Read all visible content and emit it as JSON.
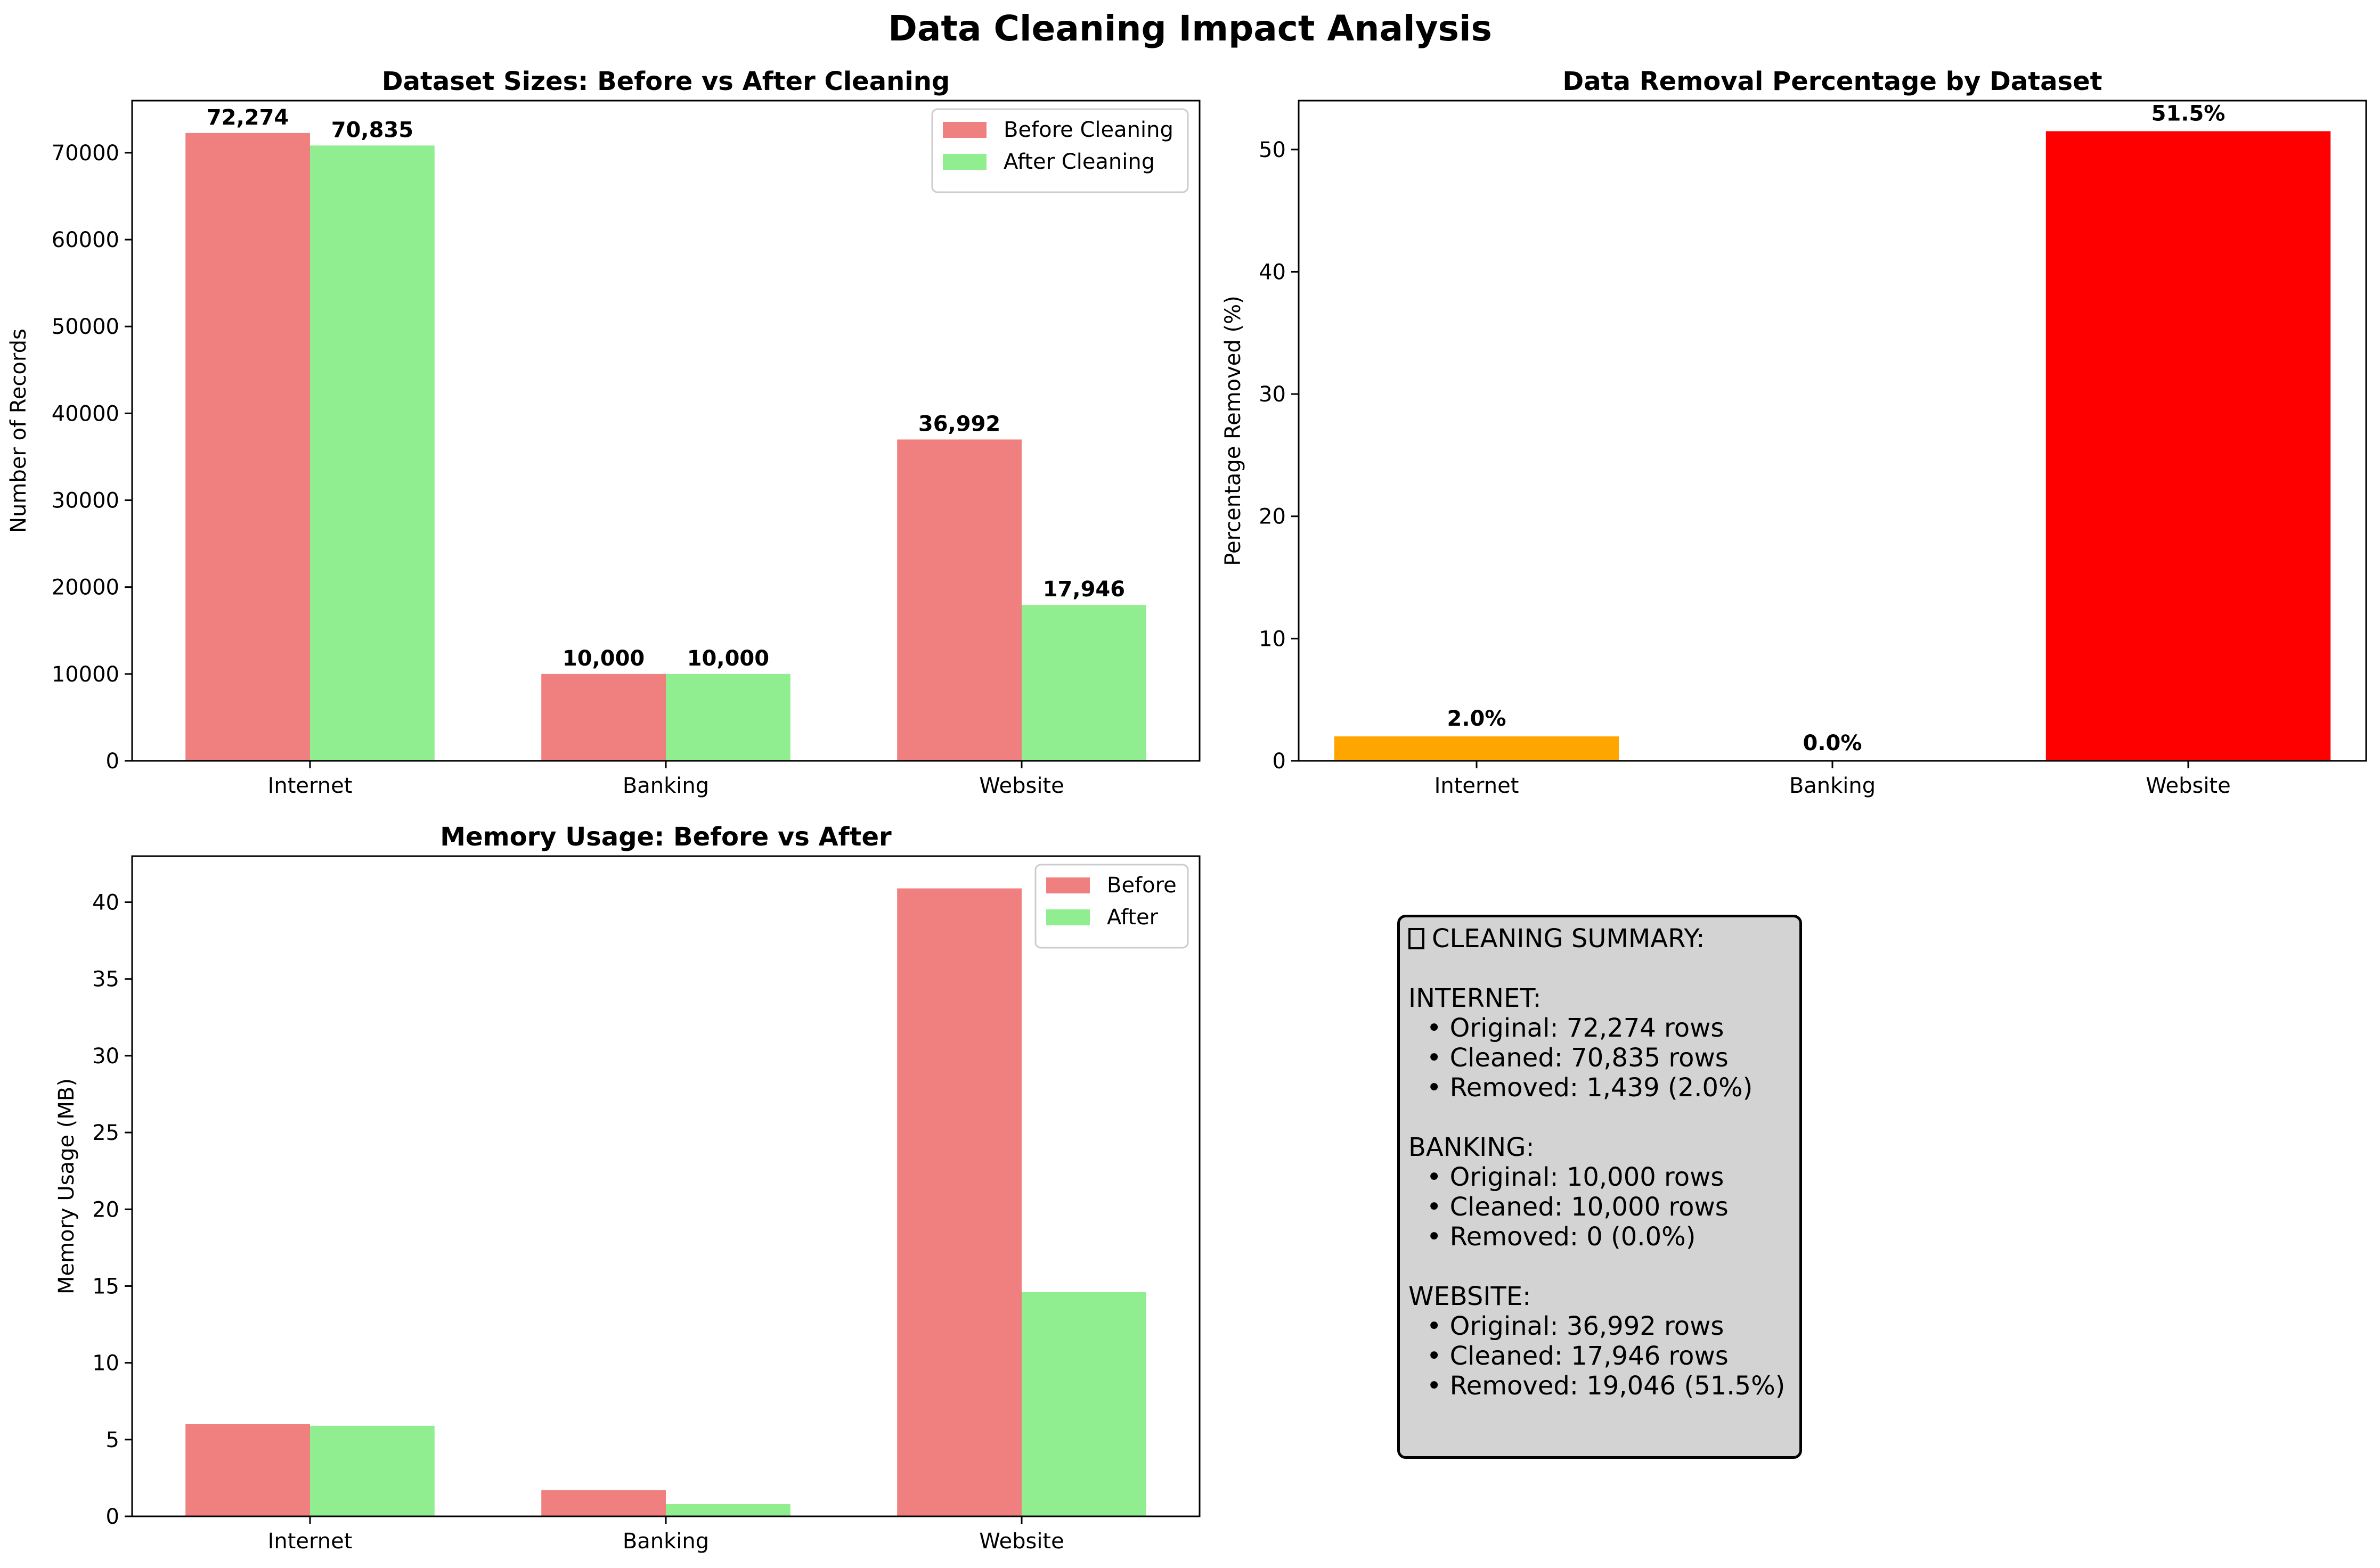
{
  "suptitle": "Data Cleaning Impact Analysis",
  "colors": {
    "before": "#f08080",
    "after": "#90ee90",
    "internet_removal": "#ffa500",
    "banking_removal": "#90ee90",
    "website_removal": "#ff0000",
    "summary_bg": "#d3d3d3"
  },
  "chart_data": [
    {
      "type": "bar",
      "title": "Dataset Sizes: Before vs After Cleaning",
      "xlabel": "",
      "ylabel": "Number of Records",
      "categories": [
        "Internet",
        "Banking",
        "Website"
      ],
      "series": [
        {
          "name": "Before Cleaning",
          "values": [
            72274,
            10000,
            36992
          ],
          "labels": [
            "72,274",
            "10,000",
            "36,992"
          ]
        },
        {
          "name": "After Cleaning",
          "values": [
            70835,
            10000,
            17946
          ],
          "labels": [
            "70,835",
            "10,000",
            "17,946"
          ]
        }
      ],
      "ylim": [
        0,
        76000
      ],
      "yticks": [
        0,
        10000,
        20000,
        30000,
        40000,
        50000,
        60000,
        70000
      ],
      "legend": "top-right",
      "grid": false
    },
    {
      "type": "bar",
      "title": "Data Removal Percentage by Dataset",
      "xlabel": "",
      "ylabel": "Percentage Removed (%)",
      "categories": [
        "Internet",
        "Banking",
        "Website"
      ],
      "values": [
        2.0,
        0.0,
        51.5
      ],
      "labels": [
        "2.0%",
        "0.0%",
        "51.5%"
      ],
      "ylim": [
        0,
        54
      ],
      "yticks": [
        0,
        10,
        20,
        30,
        40,
        50
      ],
      "legend": "none",
      "grid": false
    },
    {
      "type": "bar",
      "title": "Memory Usage: Before vs After",
      "xlabel": "",
      "ylabel": "Memory Usage (MB)",
      "categories": [
        "Internet",
        "Banking",
        "Website"
      ],
      "series": [
        {
          "name": "Before",
          "values": [
            6.0,
            1.7,
            40.9
          ]
        },
        {
          "name": "After",
          "values": [
            5.9,
            0.8,
            14.6
          ]
        }
      ],
      "ylim": [
        0,
        43
      ],
      "yticks": [
        0,
        5,
        10,
        15,
        20,
        25,
        30,
        35,
        40
      ],
      "legend": "top-right",
      "grid": false
    }
  ],
  "summary": {
    "heading": "CLEANING SUMMARY:",
    "sections": [
      {
        "name": "INTERNET:",
        "lines": [
          "• Original: 72,274 rows",
          "• Cleaned: 70,835 rows",
          "• Removed: 1,439 (2.0%)"
        ]
      },
      {
        "name": "BANKING:",
        "lines": [
          "• Original: 10,000 rows",
          "• Cleaned: 10,000 rows",
          "• Removed: 0 (0.0%)"
        ]
      },
      {
        "name": "WEBSITE:",
        "lines": [
          "• Original: 36,992 rows",
          "• Cleaned: 17,946 rows",
          "• Removed: 19,046 (51.5%)"
        ]
      }
    ]
  }
}
